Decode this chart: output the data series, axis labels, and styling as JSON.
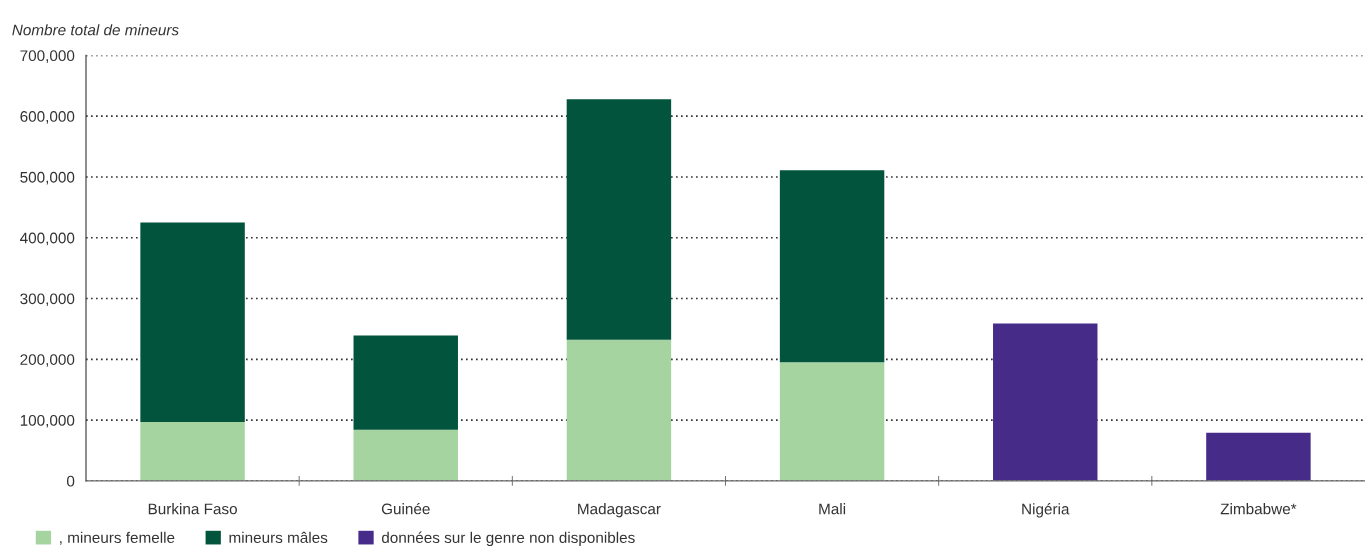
{
  "chart_data": {
    "type": "bar",
    "stacked": true,
    "ylabel": "Nombre total de mineurs",
    "categories": [
      "Burkina Faso",
      "Guinée",
      "Madagascar",
      "Mali",
      "Nigéria",
      "Zimbabwe*"
    ],
    "series": [
      {
        "name": ", mineurs femelle",
        "color": "#a5d4a1",
        "values": [
          97000,
          84000,
          232000,
          195000,
          null,
          null
        ]
      },
      {
        "name": "mineurs mâles",
        "color": "#02553c",
        "values": [
          328000,
          155000,
          396000,
          316000,
          null,
          null
        ]
      },
      {
        "name": "données sur le genre non disponibles",
        "color": "#472b89",
        "values": [
          null,
          null,
          null,
          null,
          259000,
          79000
        ]
      }
    ],
    "ylim": [
      0,
      700000
    ],
    "yticks": [
      0,
      {
        "value": 100000,
        "label": "100,000"
      },
      {
        "value": 200000,
        "label": "200,000"
      },
      {
        "value": 300000,
        "label": "300,000"
      },
      {
        "value": 400000,
        "label": "400,000"
      },
      {
        "value": 500000,
        "label": "500,000"
      },
      {
        "value": 600000,
        "label": "600,000"
      },
      {
        "value": 700000,
        "label": "700,000"
      }
    ],
    "grid": "y",
    "legend": "bottom left"
  }
}
